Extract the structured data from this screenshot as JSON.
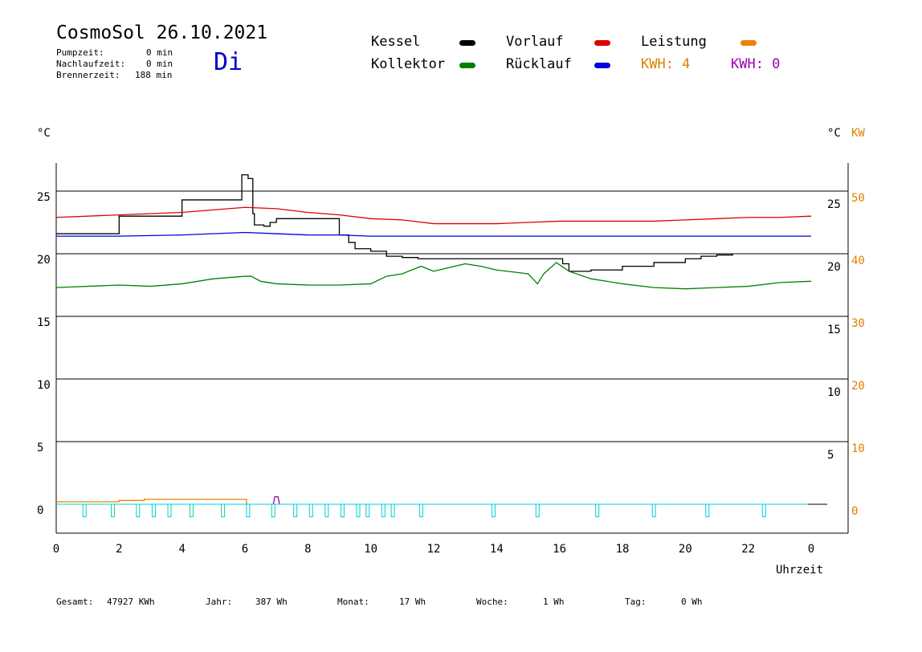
{
  "header": {
    "title": "CosmoSol 26.10.2021",
    "weekday": "Di",
    "stats": [
      {
        "label": "Pumpzeit:",
        "value": "0 min"
      },
      {
        "label": "Nachlaufzeit:",
        "value": "0 min"
      },
      {
        "label": "Brennerzeit:",
        "value": "188 min"
      }
    ]
  },
  "legend": {
    "items": [
      {
        "label": "Kessel",
        "color": "#000000"
      },
      {
        "label": "Vorlauf",
        "color": "#e00000"
      },
      {
        "label": "Leistung",
        "color": "#f08000"
      },
      {
        "label": "Kollektor",
        "color": "#008000"
      },
      {
        "label": "Rücklauf",
        "color": "#0000e0"
      }
    ],
    "kwh_a": {
      "text": "KWH: 4",
      "color": "#e08000"
    },
    "kwh_b": {
      "text": "KWH: 0",
      "color": "#9900aa"
    }
  },
  "axes": {
    "left_unit": "°C",
    "right_unit": "°C",
    "right_unit_kw": "KW",
    "xlabel": "Uhrzeit"
  },
  "footer": [
    {
      "label": "Gesamt:",
      "value": "47927 KWh"
    },
    {
      "label": "Jahr:",
      "value": "387 Wh"
    },
    {
      "label": "Monat:",
      "value": "17 Wh"
    },
    {
      "label": "Woche:",
      "value": "1 Wh"
    },
    {
      "label": "Tag:",
      "value": "0 Wh"
    }
  ],
  "chart_data": {
    "type": "line",
    "x_ticks": [
      "0",
      "2",
      "4",
      "6",
      "8",
      "10",
      "12",
      "14",
      "16",
      "18",
      "20",
      "22",
      "0"
    ],
    "x_range": [
      0,
      24
    ],
    "ylim": [
      -1.5,
      28
    ],
    "y_ticks_left": [
      "25",
      "20",
      "15",
      "10",
      "5",
      "0"
    ],
    "y_ticks_right_temp": [
      "25",
      "20",
      "15",
      "10",
      "5"
    ],
    "y_ticks_right_kw": [
      "50",
      "40",
      "30",
      "20",
      "10",
      "0"
    ],
    "grid": true,
    "series": [
      {
        "name": "Kessel",
        "color": "#000000",
        "step": true,
        "points": [
          [
            0,
            21.6
          ],
          [
            2,
            23
          ],
          [
            4,
            24.3
          ],
          [
            5.9,
            26.3
          ],
          [
            6.1,
            26
          ],
          [
            6.25,
            23.2
          ],
          [
            6.3,
            22.3
          ],
          [
            6.6,
            22.2
          ],
          [
            6.8,
            22.5
          ],
          [
            6.9,
            22.5
          ],
          [
            7,
            22.8
          ],
          [
            8.9,
            22.8
          ],
          [
            9,
            21.5
          ],
          [
            9.3,
            20.9
          ],
          [
            9.5,
            20.4
          ],
          [
            10,
            20.2
          ],
          [
            10.5,
            19.8
          ],
          [
            11,
            19.7
          ],
          [
            11.5,
            19.6
          ],
          [
            16,
            19.6
          ],
          [
            16.1,
            19.2
          ],
          [
            16.3,
            18.6
          ],
          [
            17,
            18.7
          ],
          [
            18,
            19
          ],
          [
            19,
            19.3
          ],
          [
            20,
            19.6
          ],
          [
            20.5,
            19.8
          ],
          [
            21,
            19.9
          ],
          [
            21.5,
            20
          ]
        ]
      },
      {
        "name": "Vorlauf",
        "color": "#e00000",
        "points": [
          [
            0,
            22.9
          ],
          [
            2,
            23.1
          ],
          [
            4,
            23.3
          ],
          [
            5,
            23.5
          ],
          [
            6,
            23.7
          ],
          [
            7,
            23.6
          ],
          [
            8,
            23.3
          ],
          [
            9,
            23.1
          ],
          [
            10,
            22.8
          ],
          [
            11,
            22.7
          ],
          [
            12,
            22.4
          ],
          [
            13,
            22.4
          ],
          [
            14,
            22.4
          ],
          [
            15,
            22.5
          ],
          [
            16,
            22.6
          ],
          [
            17,
            22.6
          ],
          [
            18,
            22.6
          ],
          [
            19,
            22.6
          ],
          [
            20,
            22.7
          ],
          [
            21,
            22.8
          ],
          [
            22,
            22.9
          ],
          [
            23,
            22.9
          ],
          [
            24,
            23
          ]
        ]
      },
      {
        "name": "Rücklauf",
        "color": "#0000e0",
        "points": [
          [
            0,
            21.4
          ],
          [
            2,
            21.4
          ],
          [
            4,
            21.5
          ],
          [
            6,
            21.7
          ],
          [
            7,
            21.6
          ],
          [
            8,
            21.5
          ],
          [
            9,
            21.5
          ],
          [
            10,
            21.4
          ],
          [
            12,
            21.4
          ],
          [
            16,
            21.4
          ],
          [
            20,
            21.4
          ],
          [
            24,
            21.4
          ]
        ]
      },
      {
        "name": "Kollektor",
        "color": "#008000",
        "points": [
          [
            0,
            17.3
          ],
          [
            2,
            17.5
          ],
          [
            3,
            17.4
          ],
          [
            4,
            17.6
          ],
          [
            5,
            18
          ],
          [
            6,
            18.2
          ],
          [
            6.2,
            18.2
          ],
          [
            6.5,
            17.8
          ],
          [
            7,
            17.6
          ],
          [
            8,
            17.5
          ],
          [
            9,
            17.5
          ],
          [
            10,
            17.6
          ],
          [
            10.5,
            18.2
          ],
          [
            11,
            18.4
          ],
          [
            11.6,
            19
          ],
          [
            12,
            18.6
          ],
          [
            12.5,
            18.9
          ],
          [
            13,
            19.2
          ],
          [
            13.5,
            19
          ],
          [
            14,
            18.7
          ],
          [
            15,
            18.4
          ],
          [
            15.3,
            17.6
          ],
          [
            15.5,
            18.4
          ],
          [
            15.9,
            19.3
          ],
          [
            16.3,
            18.6
          ],
          [
            17,
            18
          ],
          [
            18,
            17.6
          ],
          [
            19,
            17.3
          ],
          [
            20,
            17.2
          ],
          [
            21,
            17.3
          ],
          [
            22,
            17.4
          ],
          [
            23,
            17.7
          ],
          [
            24,
            17.8
          ]
        ]
      },
      {
        "name": "Leistung",
        "color": "#f08000",
        "step": true,
        "points": [
          [
            0,
            0.2
          ],
          [
            1.5,
            0.2
          ],
          [
            2,
            0.3
          ],
          [
            2.4,
            0.3
          ],
          [
            2.8,
            0.4
          ],
          [
            6,
            0.4
          ],
          [
            6.05,
            0
          ]
        ]
      },
      {
        "name": "KWH: 0",
        "color": "#9900aa",
        "points": [
          [
            6.9,
            0
          ],
          [
            6.95,
            0.6
          ],
          [
            7.05,
            0.6
          ],
          [
            7.1,
            0
          ]
        ]
      }
    ],
    "pulses": {
      "color": "#00d0d0",
      "baseline": 0,
      "depth": -1,
      "x": [
        0.9,
        1.8,
        2.6,
        3.1,
        3.6,
        4.3,
        5.3,
        6.1,
        6.9,
        7.6,
        8.1,
        8.6,
        9.1,
        9.6,
        9.9,
        10.4,
        10.7,
        11.6,
        13.9,
        15.3,
        17.2,
        19,
        20.7,
        22.5
      ]
    }
  }
}
